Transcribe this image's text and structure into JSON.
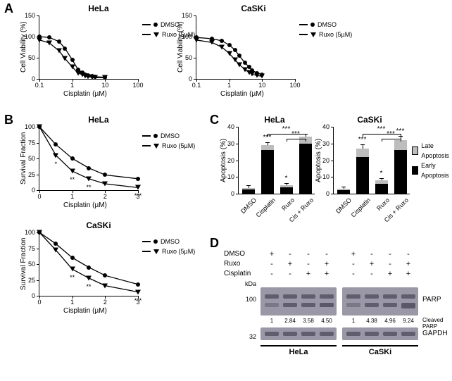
{
  "panels": {
    "A": "A",
    "B": "B",
    "C": "C",
    "D": "D"
  },
  "cell_lines": {
    "hela": "HeLa",
    "caski": "CaSKi"
  },
  "A": {
    "hela": {
      "title": "HeLa",
      "type": "line-logx",
      "xlabel": "Cisplatin (µM)",
      "ylabel": "Cell Viability (%)",
      "xlim_log": [
        -1,
        2
      ],
      "ylim": [
        0,
        150
      ],
      "ytick_step": 50,
      "xticks": [
        0.1,
        1,
        10,
        100
      ],
      "series": [
        {
          "name": "DMSO",
          "marker": "circle",
          "color": "#000000",
          "x": [
            0.1,
            0.2,
            0.4,
            0.6,
            1,
            1.5,
            2,
            2.5,
            3,
            4,
            5,
            10
          ],
          "y": [
            100,
            98,
            88,
            72,
            45,
            22,
            15,
            10,
            8,
            6,
            5,
            4
          ]
        },
        {
          "name": "Ruxo (5µM)",
          "marker": "triangle",
          "color": "#000000",
          "x": [
            0.1,
            0.2,
            0.4,
            0.6,
            1,
            1.5,
            2,
            2.5,
            3,
            4,
            5,
            10
          ],
          "y": [
            92,
            85,
            66,
            48,
            28,
            14,
            10,
            7,
            5,
            4,
            3,
            3
          ]
        }
      ]
    },
    "caski": {
      "title": "CaSKi",
      "type": "line-logx",
      "xlabel": "Cisplatin (µM)",
      "ylabel": "Cell Viability (%)",
      "xlim_log": [
        -1,
        2
      ],
      "ylim": [
        0,
        150
      ],
      "ytick_step": 50,
      "xticks": [
        0.1,
        1,
        10,
        100
      ],
      "series": [
        {
          "name": "DMSO",
          "marker": "circle",
          "color": "#000000",
          "x": [
            0.1,
            0.3,
            0.6,
            1,
            1.5,
            2,
            3,
            4,
            5,
            7,
            10
          ],
          "y": [
            98,
            95,
            90,
            80,
            68,
            55,
            38,
            28,
            20,
            14,
            10
          ]
        },
        {
          "name": "Ruxo (5µM)",
          "marker": "triangle",
          "color": "#000000",
          "x": [
            0.1,
            0.3,
            0.6,
            1,
            1.5,
            2,
            3,
            4,
            5,
            7,
            10
          ],
          "y": [
            92,
            86,
            75,
            60,
            45,
            34,
            22,
            15,
            11,
            8,
            6
          ]
        }
      ]
    },
    "legend": {
      "items": [
        "DMSO",
        "Ruxo (5µM)"
      ]
    }
  },
  "B": {
    "hela": {
      "title": "HeLa",
      "type": "line",
      "xlabel": "Cisplatin (µM)",
      "ylabel": "Survival Fraction",
      "xlim": [
        0,
        3
      ],
      "ylim": [
        0,
        100
      ],
      "yticks": [
        0,
        25,
        50,
        75,
        100
      ],
      "xticks": [
        0,
        1,
        2,
        3
      ],
      "series": [
        {
          "name": "DMSO",
          "marker": "circle",
          "color": "#000000",
          "x": [
            0,
            0.5,
            1,
            1.5,
            2,
            3
          ],
          "y": [
            100,
            72,
            50,
            35,
            24,
            18
          ]
        },
        {
          "name": "Ruxo (5µM)",
          "marker": "triangle",
          "color": "#000000",
          "x": [
            0,
            0.5,
            1,
            1.5,
            2,
            3
          ],
          "y": [
            100,
            55,
            30,
            18,
            10,
            4
          ]
        }
      ],
      "sig": [
        {
          "x": 0.5,
          "label": "*"
        },
        {
          "x": 1,
          "label": "**"
        },
        {
          "x": 1.5,
          "label": "**"
        },
        {
          "x": 3,
          "label": "***"
        }
      ]
    },
    "caski": {
      "title": "CaSKi",
      "type": "line",
      "xlabel": "Cisplatin (µM)",
      "ylabel": "Survival Fraction",
      "xlim": [
        0,
        3
      ],
      "ylim": [
        0,
        100
      ],
      "yticks": [
        0,
        25,
        50,
        75,
        100
      ],
      "xticks": [
        0,
        1,
        2,
        3
      ],
      "series": [
        {
          "name": "DMSO",
          "marker": "circle",
          "color": "#000000",
          "x": [
            0,
            0.5,
            1,
            1.5,
            2,
            3
          ],
          "y": [
            100,
            82,
            60,
            45,
            32,
            18
          ]
        },
        {
          "name": "Ruxo (5µM)",
          "marker": "triangle",
          "color": "#000000",
          "x": [
            0,
            0.5,
            1,
            1.5,
            2,
            3
          ],
          "y": [
            100,
            72,
            42,
            28,
            16,
            6
          ]
        }
      ],
      "sig": [
        {
          "x": 1,
          "label": "**"
        },
        {
          "x": 1.5,
          "label": "**"
        },
        {
          "x": 3,
          "label": "***"
        }
      ]
    },
    "legend": {
      "items": [
        "DMSO",
        "Ruxo (5µM)"
      ]
    }
  },
  "C": {
    "ylabel": "Apoptosis (%)",
    "ylim": [
      0,
      40
    ],
    "ytick_step": 10,
    "categories": [
      "DMSO",
      "Cisplatin",
      "Ruxo",
      "Cis + Ruxo"
    ],
    "legend": {
      "late": "Late Apoptosis",
      "early": "Early Apoptosis"
    },
    "hela": {
      "title": "HeLa",
      "bars": [
        {
          "early": 2.5,
          "late": 1.0,
          "err": 1,
          "sig_above": ""
        },
        {
          "early": 26,
          "late": 3,
          "err": 1.5,
          "sig_above": "***"
        },
        {
          "early": 4,
          "late": 1,
          "err": 1,
          "sig_above": "*"
        },
        {
          "early": 30,
          "late": 4,
          "err": 1.5,
          "sig_above": ""
        }
      ],
      "brackets": [
        {
          "from": 1,
          "to": 3,
          "y": 36,
          "label": "***"
        },
        {
          "from": 2,
          "to": 3,
          "y": 33,
          "label": "***"
        }
      ]
    },
    "caski": {
      "title": "CaSKi",
      "bars": [
        {
          "early": 2,
          "late": 1,
          "err": 1,
          "sig_above": ""
        },
        {
          "early": 22,
          "late": 5,
          "err": 2,
          "sig_above": "***"
        },
        {
          "early": 6,
          "late": 2,
          "err": 1,
          "sig_above": "*"
        },
        {
          "early": 26,
          "late": 6,
          "err": 2,
          "sig_above": "***"
        }
      ],
      "brackets": [
        {
          "from": 1,
          "to": 3,
          "y": 36,
          "label": "***"
        },
        {
          "from": 2,
          "to": 3,
          "y": 33,
          "label": "***"
        }
      ]
    }
  },
  "D": {
    "treatments": {
      "rows": [
        "DMSO",
        "Ruxo",
        "Cisplatin"
      ],
      "marks": [
        [
          "+",
          "-",
          "-",
          "-",
          "+",
          "-",
          "-",
          "-"
        ],
        [
          "-",
          "+",
          "-",
          "+",
          "-",
          "+",
          "-",
          "+"
        ],
        [
          "-",
          "-",
          "+",
          "+",
          "-",
          "-",
          "+",
          "+"
        ]
      ]
    },
    "kda_label": "kDa",
    "mw": {
      "parp": "100",
      "gapdh": "32"
    },
    "proteins": {
      "parp": "PARP",
      "cleaved": "Cleaved PARP",
      "gapdh": "GAPDH"
    },
    "quant": {
      "hela": [
        "1",
        "2.84",
        "3.58",
        "4.50"
      ],
      "caski": [
        "1",
        "4.38",
        "4.96",
        "9.24"
      ]
    },
    "cell_lines": [
      "HeLa",
      "CaSKi"
    ],
    "blot_color": "#9a98a6",
    "band_color": "#5a5868"
  }
}
